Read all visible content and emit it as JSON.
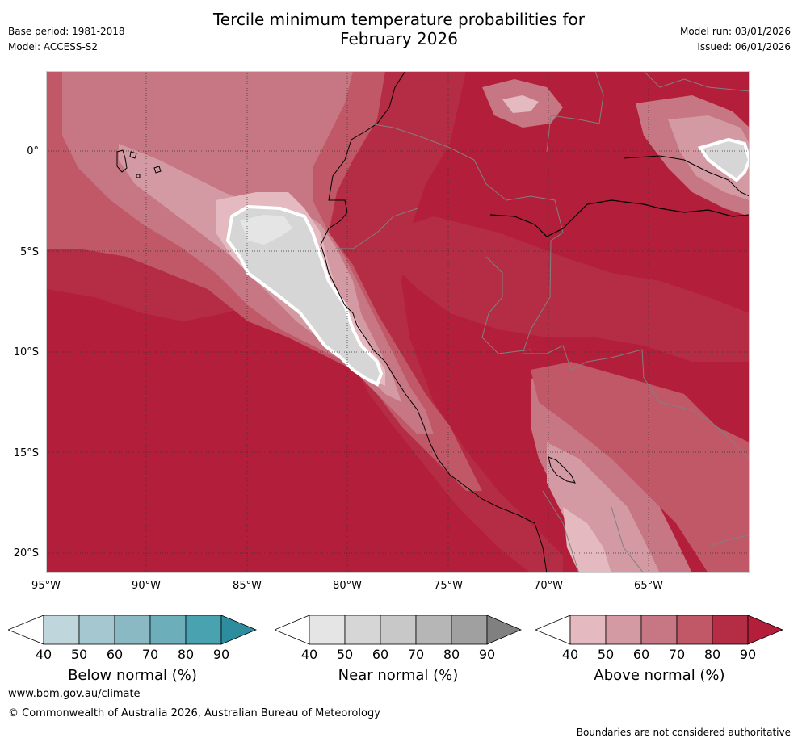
{
  "header": {
    "title_line1": "Tercile minimum temperature probabilities for",
    "title_line2": "February 2026",
    "base_period": "Base period: 1981-2018",
    "model": "Model: ACCESS-S2",
    "model_run": "Model run: 03/01/2026",
    "issued": "Issued: 06/01/2026"
  },
  "map": {
    "lat_labels": [
      "0°",
      "5°S",
      "10°S",
      "15°S",
      "20°S"
    ],
    "lon_labels": [
      "95°W",
      "90°W",
      "85°W",
      "80°W",
      "75°W",
      "70°W",
      "65°W"
    ]
  },
  "legends": [
    {
      "title": "Below normal (%)",
      "ticks": [
        "40",
        "50",
        "60",
        "70",
        "80",
        "90"
      ],
      "colors": [
        "#ffffff",
        "#bfd7dc",
        "#a5c7cf",
        "#8ab8c3",
        "#6caeb9",
        "#48a2b0",
        "#2e8c9f"
      ]
    },
    {
      "title": "Near normal (%)",
      "ticks": [
        "40",
        "50",
        "60",
        "70",
        "80",
        "90"
      ],
      "colors": [
        "#ffffff",
        "#e5e5e5",
        "#d6d6d6",
        "#c8c8c8",
        "#b6b6b6",
        "#a0a0a0",
        "#808080"
      ]
    },
    {
      "title": "Above normal (%)",
      "ticks": [
        "40",
        "50",
        "60",
        "70",
        "80",
        "90"
      ],
      "colors": [
        "#ffffff",
        "#e4b9bf",
        "#d39aa3",
        "#c77783",
        "#c05868",
        "#b42d44",
        "#b31e3b"
      ]
    }
  ],
  "footer": {
    "website": "www.bom.gov.au/climate",
    "copyright": "© Commonwealth of Australia 2026, Australian Bureau of Meteorology",
    "disclaimer": "Boundaries are not considered authoritative"
  }
}
